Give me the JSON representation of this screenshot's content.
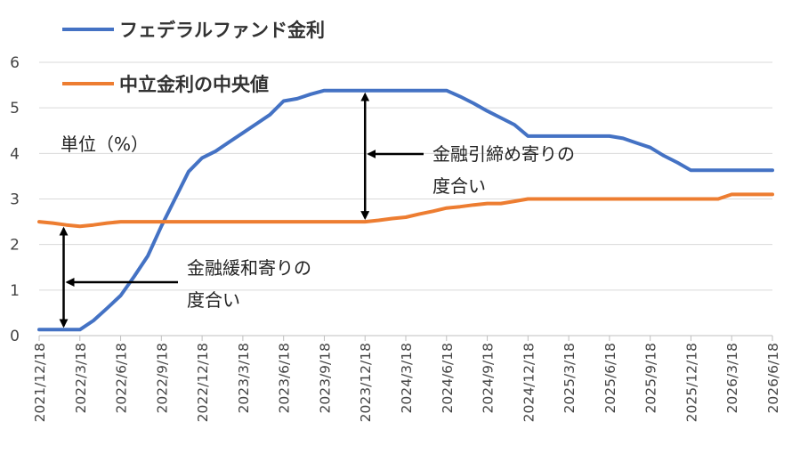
{
  "chart_data": {
    "type": "line",
    "ylabel": "単位（%）",
    "ylim": [
      0,
      6
    ],
    "yticks": [
      0,
      1,
      2,
      3,
      4,
      5,
      6
    ],
    "x": [
      "2021/12/18",
      "2022/1/18",
      "2022/2/18",
      "2022/3/18",
      "2022/4/18",
      "2022/5/18",
      "2022/6/18",
      "2022/7/18",
      "2022/8/18",
      "2022/9/18",
      "2022/10/18",
      "2022/11/18",
      "2022/12/18",
      "2023/1/18",
      "2023/2/18",
      "2023/3/18",
      "2023/4/18",
      "2023/5/18",
      "2023/6/18",
      "2023/7/18",
      "2023/8/18",
      "2023/9/18",
      "2023/10/18",
      "2023/11/18",
      "2023/12/18",
      "2024/1/18",
      "2024/2/18",
      "2024/3/18",
      "2024/4/18",
      "2024/5/18",
      "2024/6/18",
      "2024/7/18",
      "2024/8/18",
      "2024/9/18",
      "2024/10/18",
      "2024/11/18",
      "2024/12/18",
      "2025/1/18",
      "2025/2/18",
      "2025/3/18",
      "2025/4/18",
      "2025/5/18",
      "2025/6/18",
      "2025/7/18",
      "2025/8/18",
      "2025/9/18",
      "2025/10/18",
      "2025/11/18",
      "2025/12/18",
      "2026/1/18",
      "2026/2/18",
      "2026/3/18",
      "2026/4/18",
      "2026/5/18",
      "2026/6/18"
    ],
    "xtick_labels": [
      "2021/12/18",
      "2022/3/18",
      "2022/6/18",
      "2022/9/18",
      "2022/12/18",
      "2023/3/18",
      "2023/6/18",
      "2023/9/18",
      "2023/12/18",
      "2024/3/18",
      "2024/6/18",
      "2024/9/18",
      "2024/12/18",
      "2025/3/18",
      "2025/6/18",
      "2025/9/18",
      "2025/12/18",
      "2026/3/18",
      "2026/6/18"
    ],
    "series": [
      {
        "name": "フェデラルファンド金利",
        "color": "#4472c4",
        "values": [
          0.13,
          0.13,
          0.13,
          0.13,
          0.33,
          0.6,
          0.88,
          1.3,
          1.75,
          2.4,
          3.0,
          3.6,
          3.9,
          4.05,
          4.25,
          4.45,
          4.65,
          4.85,
          5.15,
          5.2,
          5.3,
          5.38,
          5.38,
          5.38,
          5.38,
          5.38,
          5.38,
          5.38,
          5.38,
          5.38,
          5.38,
          5.25,
          5.1,
          4.93,
          4.78,
          4.63,
          4.38,
          4.38,
          4.38,
          4.38,
          4.38,
          4.38,
          4.38,
          4.33,
          4.23,
          4.13,
          3.95,
          3.8,
          3.63,
          3.63,
          3.63,
          3.63,
          3.63,
          3.63,
          3.63
        ]
      },
      {
        "name": "中立金利の中央値",
        "color": "#ed7d31",
        "values": [
          2.5,
          2.47,
          2.43,
          2.4,
          2.43,
          2.47,
          2.5,
          2.5,
          2.5,
          2.5,
          2.5,
          2.5,
          2.5,
          2.5,
          2.5,
          2.5,
          2.5,
          2.5,
          2.5,
          2.5,
          2.5,
          2.5,
          2.5,
          2.5,
          2.5,
          2.53,
          2.57,
          2.6,
          2.67,
          2.73,
          2.8,
          2.83,
          2.87,
          2.9,
          2.9,
          2.95,
          3.0,
          3.0,
          3.0,
          3.0,
          3.0,
          3.0,
          3.0,
          3.0,
          3.0,
          3.0,
          3.0,
          3.0,
          3.0,
          3.0,
          3.0,
          3.1,
          3.1,
          3.1,
          3.1
        ]
      }
    ],
    "annotations": [
      {
        "text_line1": "金融引締め寄りの",
        "text_line2": "度合い",
        "x": "2023/12/18",
        "y_from": 2.5,
        "y_to": 5.38
      },
      {
        "text_line1": "金融緩和寄りの",
        "text_line2": "度合い",
        "x": "2022/2/18",
        "y_from": 0.13,
        "y_to": 2.43
      }
    ],
    "grid": true,
    "legend_position": "top-left"
  }
}
